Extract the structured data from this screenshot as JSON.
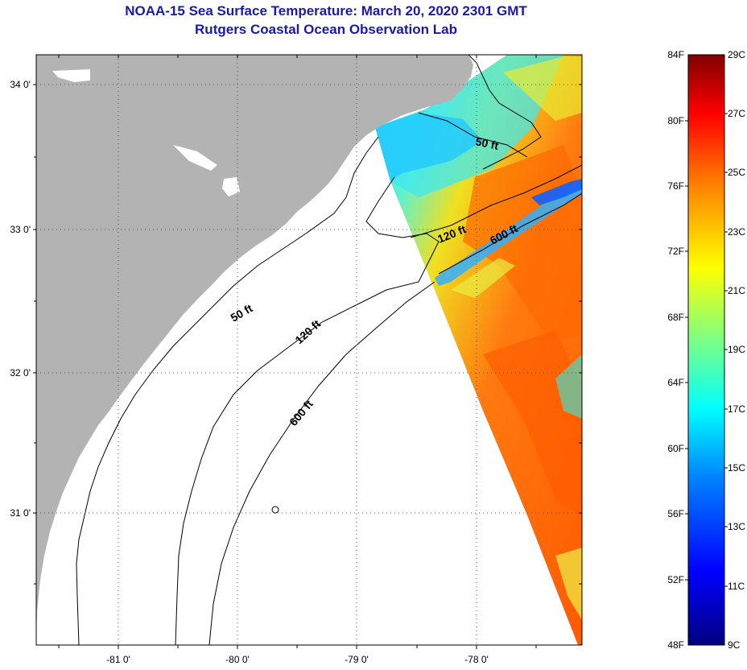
{
  "title": {
    "line1": "NOAA-15 Sea Surface Temperature:  March 20, 2020 2301 GMT",
    "line2": "Rutgers Coastal Ocean Observation Lab"
  },
  "map": {
    "lat_labels": [
      "34 0'",
      "33 0'",
      "32 0'",
      "31 0'"
    ],
    "lon_labels": [
      "-81 0'",
      "-80 0'",
      "-79 0'",
      "-78 0'"
    ],
    "contours": {
      "inshore_50_a": "50 ft",
      "inshore_50_b": "50 ft",
      "mid_120_a": "120 ft",
      "mid_120_b": "120 ft",
      "shelf_600_a": "600 ft",
      "shelf_600_b": "600 ft"
    },
    "colors": {
      "land": "#b3b3b3",
      "no_data": "#ffffff"
    }
  },
  "colorbar": {
    "fahrenheit": [
      "84F",
      "80F",
      "76F",
      "72F",
      "68F",
      "64F",
      "60F",
      "56F",
      "52F",
      "48F"
    ],
    "celsius": [
      "29C",
      "27C",
      "25C",
      "23C",
      "21C",
      "19C",
      "17C",
      "15C",
      "13C",
      "11C",
      "9C"
    ],
    "range_f": [
      48,
      84
    ],
    "range_c": [
      9,
      29
    ],
    "gradient": [
      "#000080",
      "#0000ff",
      "#0080ff",
      "#00ffff",
      "#80ff80",
      "#ffff00",
      "#ff8000",
      "#ff0000",
      "#800000"
    ]
  }
}
